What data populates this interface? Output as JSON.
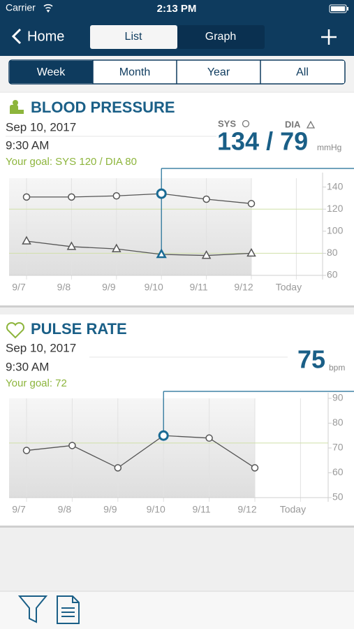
{
  "status_bar": {
    "carrier": "Carrier",
    "time": "2:13 PM"
  },
  "nav": {
    "back": "Home",
    "tabs": [
      "List",
      "Graph"
    ],
    "selected_tab": 0
  },
  "range_tabs": {
    "items": [
      "Week",
      "Month",
      "Year",
      "All"
    ],
    "selected": 0
  },
  "blood_pressure": {
    "title": "BLOOD PRESSURE",
    "date": "Sep 10, 2017",
    "time": "9:30 AM",
    "goal": "Your goal: SYS 120 / DIA 80",
    "reading": "134 / 79",
    "unit": "mmHg",
    "chart": {
      "type": "line",
      "categories": [
        "9/7",
        "9/8",
        "9/9",
        "9/10",
        "9/11",
        "9/12",
        "Today"
      ],
      "series": [
        {
          "name": "SYS",
          "marker": "circle",
          "values": [
            131,
            131,
            132,
            134,
            129,
            125,
            null
          ]
        },
        {
          "name": "DIA",
          "marker": "triangle",
          "values": [
            91,
            86,
            84,
            79,
            78,
            80,
            null
          ]
        }
      ],
      "ylim": [
        60,
        148
      ],
      "yticks": [
        60,
        80,
        100,
        120,
        140
      ],
      "goal_lines": [
        120,
        80
      ],
      "selected_index": 3
    }
  },
  "pulse_rate": {
    "title": "PULSE RATE",
    "date": "Sep 10, 2017",
    "time": "9:30 AM",
    "goal": "Your goal: 72",
    "reading": "75",
    "unit": "bpm",
    "chart": {
      "type": "line",
      "categories": [
        "9/7",
        "9/8",
        "9/9",
        "9/10",
        "9/11",
        "9/12",
        "Today"
      ],
      "series": [
        {
          "marker": "circle",
          "values": [
            69,
            71,
            62,
            75,
            74,
            62,
            null
          ]
        }
      ],
      "ylim": [
        50,
        90
      ],
      "yticks": [
        50,
        60,
        70,
        80,
        90
      ],
      "goal_lines": [
        72
      ],
      "selected_index": 3
    }
  }
}
